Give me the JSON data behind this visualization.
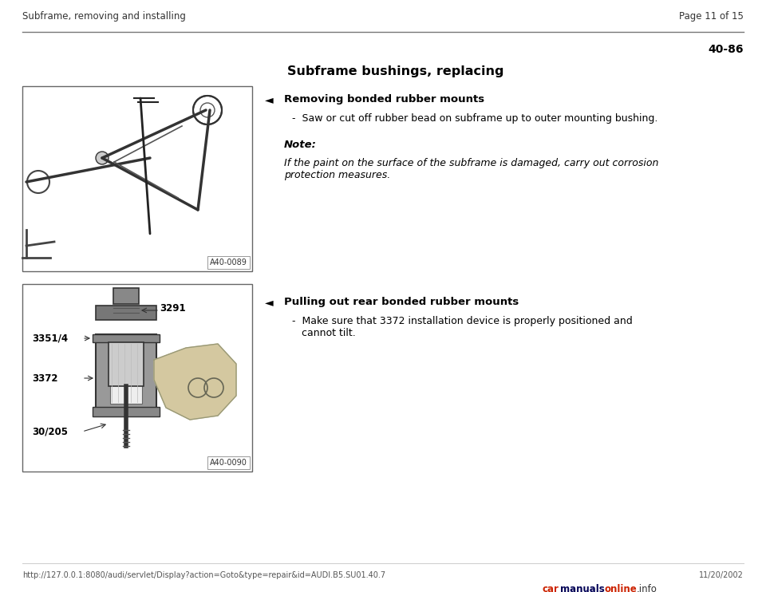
{
  "bg_color": "#ffffff",
  "header_left": "Subframe, removing and installing",
  "header_right": "Page 11 of 15",
  "section_number": "40-86",
  "main_title": "Subframe bushings, replacing",
  "arrow_symbol": "◄",
  "section1_heading": "Removing bonded rubber mounts",
  "section1_bullet": "-  Saw or cut off rubber bead on subframe up to outer mounting bushing.",
  "note_label": "Note:",
  "note_line1": "If the paint on the surface of the subframe is damaged, carry out corrosion",
  "note_line2": "protection measures.",
  "section2_heading": "Pulling out rear bonded rubber mounts",
  "section2_bullet1": "-  Make sure that 3372 installation device is properly positioned and",
  "section2_bullet2": "   cannot tilt.",
  "img1_label": "A40-0089",
  "img2_label": "A40-0090",
  "img2_parts": [
    "3351/4",
    "3291",
    "3372",
    "30/205"
  ],
  "footer_url": "http://127.0.0.1:8080/audi/servlet/Display?action=Goto&type=repair&id=AUDI.B5.SU01.40.7",
  "footer_date": "11/20/2002",
  "text_color": "#000000",
  "gray_line": "#999999",
  "img_border": "#666666",
  "img_bg": "#ffffff",
  "dark_gray": "#555555",
  "med_gray": "#888888",
  "light_gray": "#bbbbbb"
}
